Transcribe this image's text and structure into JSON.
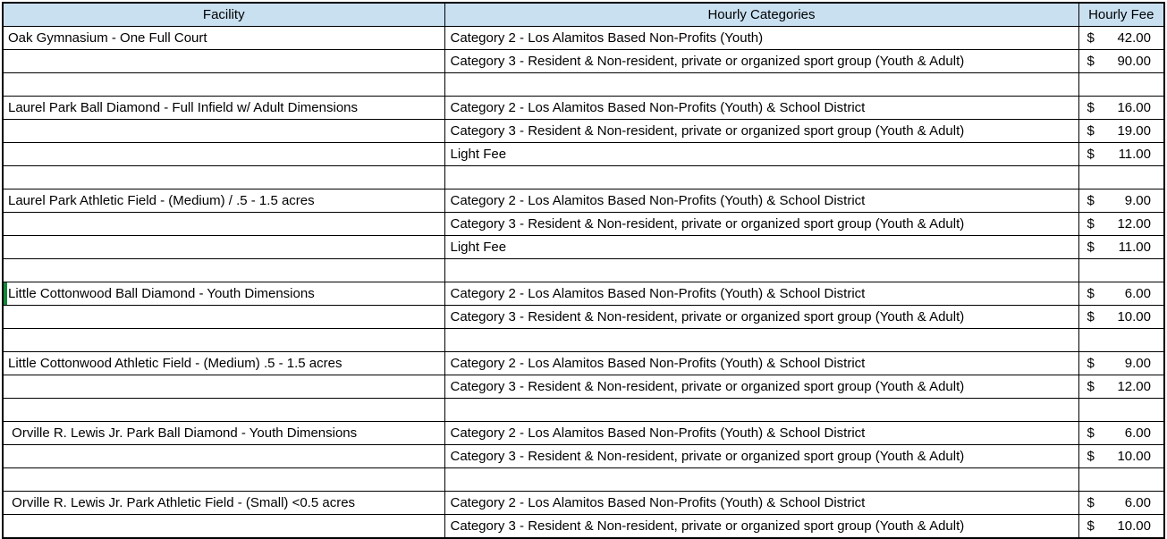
{
  "colors": {
    "header_bg": "#C9E0F1",
    "grid_border": "#000000",
    "selection_green": "#17843C",
    "text": "#000000"
  },
  "header": {
    "facility": "Facility",
    "categories": "Hourly Categories",
    "fee": "Hourly Fee"
  },
  "rows": [
    {
      "facility": "Oak Gymnasium - One Full Court",
      "category": "Category 2 - Los Alamitos Based Non-Profits (Youth)",
      "currency": "$",
      "amount": "42.00",
      "selected": false
    },
    {
      "facility": "",
      "category": "Category 3 - Resident & Non-resident, private or organized sport group (Youth & Adult)",
      "currency": "$",
      "amount": "90.00",
      "selected": false
    },
    {
      "facility": "",
      "category": "",
      "currency": "",
      "amount": "",
      "selected": false
    },
    {
      "facility": "Laurel Park Ball Diamond - Full Infield w/ Adult Dimensions",
      "category": "Category 2 - Los Alamitos Based Non-Profits (Youth) & School District",
      "currency": "$",
      "amount": "16.00",
      "selected": false
    },
    {
      "facility": "",
      "category": "Category 3 - Resident & Non-resident, private or organized sport group (Youth & Adult)",
      "currency": "$",
      "amount": "19.00",
      "selected": false
    },
    {
      "facility": "",
      "category": "Light Fee",
      "currency": "$",
      "amount": "11.00",
      "selected": false
    },
    {
      "facility": "",
      "category": "",
      "currency": "",
      "amount": "",
      "selected": false
    },
    {
      "facility": "Laurel Park Athletic Field - (Medium) / .5 - 1.5 acres",
      "category": "Category 2 - Los Alamitos Based Non-Profits (Youth) & School District",
      "currency": "$",
      "amount": "9.00",
      "selected": false
    },
    {
      "facility": "",
      "category": "Category 3 - Resident & Non-resident, private or organized sport group (Youth & Adult)",
      "currency": "$",
      "amount": "12.00",
      "selected": false
    },
    {
      "facility": "",
      "category": "Light Fee",
      "currency": "$",
      "amount": "11.00",
      "selected": false
    },
    {
      "facility": "",
      "category": "",
      "currency": "",
      "amount": "",
      "selected": false
    },
    {
      "facility": "Little Cottonwood Ball Diamond - Youth Dimensions",
      "category": "Category 2 - Los Alamitos Based Non-Profits (Youth) & School District",
      "currency": "$",
      "amount": "6.00",
      "selected": true
    },
    {
      "facility": "",
      "category": "Category 3 - Resident & Non-resident, private or organized sport group (Youth & Adult)",
      "currency": "$",
      "amount": "10.00",
      "selected": false
    },
    {
      "facility": "",
      "category": "",
      "currency": "",
      "amount": "",
      "selected": false
    },
    {
      "facility": "Little Cottonwood Athletic Field - (Medium) .5 - 1.5 acres",
      "category": "Category 2 - Los Alamitos Based Non-Profits (Youth) & School District",
      "currency": "$",
      "amount": "9.00",
      "selected": false
    },
    {
      "facility": "",
      "category": "Category 3 - Resident & Non-resident, private or organized sport group (Youth & Adult)",
      "currency": "$",
      "amount": "12.00",
      "selected": false
    },
    {
      "facility": "",
      "category": "",
      "currency": "",
      "amount": "",
      "selected": false
    },
    {
      "facility": " Orville R. Lewis Jr. Park Ball Diamond - Youth Dimensions",
      "category": "Category 2 - Los Alamitos Based Non-Profits (Youth) & School District",
      "currency": "$",
      "amount": "6.00",
      "selected": false
    },
    {
      "facility": "",
      "category": "Category 3 - Resident & Non-resident, private or organized sport group (Youth & Adult)",
      "currency": "$",
      "amount": "10.00",
      "selected": false
    },
    {
      "facility": "",
      "category": "",
      "currency": "",
      "amount": "",
      "selected": false
    },
    {
      "facility": " Orville R. Lewis Jr. Park Athletic Field - (Small) <0.5 acres",
      "category": "Category 2 - Los Alamitos Based Non-Profits (Youth) & School District",
      "currency": "$",
      "amount": "6.00",
      "selected": false
    },
    {
      "facility": "",
      "category": "Category 3 - Resident & Non-resident, private or organized sport group (Youth & Adult)",
      "currency": "$",
      "amount": "10.00",
      "selected": false
    }
  ]
}
